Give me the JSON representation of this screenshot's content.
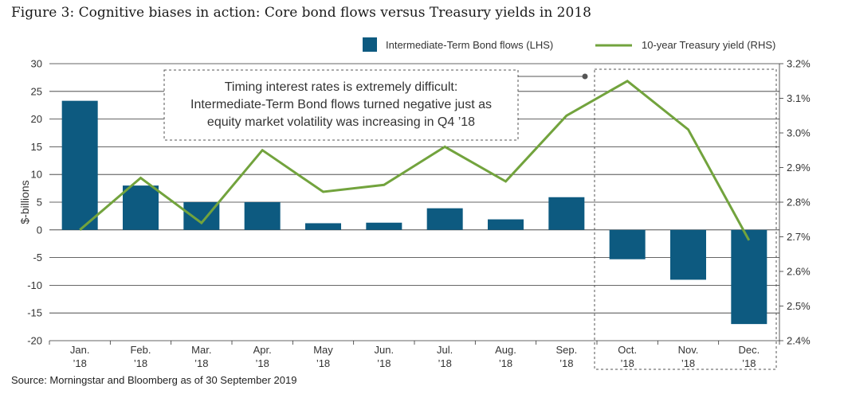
{
  "title": "Figure 3: Cognitive biases in action: Core bond flows versus Treasury yields in 2018",
  "source": "Source: Morningstar and Bloomberg as of 30 September 2019",
  "annotation": {
    "lines": [
      "Timing interest rates is extremely difficult:",
      "Intermediate-Term Bond flows turned negative just as",
      "equity market volatility was increasing in Q4 ’18"
    ]
  },
  "colors": {
    "bar": "#0d5a80",
    "line": "#72a33d",
    "grid": "#333333",
    "text": "#333333"
  },
  "chart_data": {
    "type": "bar",
    "categories": [
      [
        "Jan.",
        "’18"
      ],
      [
        "Feb.",
        "’18"
      ],
      [
        "Mar.",
        "’18"
      ],
      [
        "Apr.",
        "’18"
      ],
      [
        "May",
        "’18"
      ],
      [
        "Jun.",
        "’18"
      ],
      [
        "Jul.",
        "’18"
      ],
      [
        "Aug.",
        "’18"
      ],
      [
        "Sep.",
        "’18"
      ],
      [
        "Oct.",
        "’18"
      ],
      [
        "Nov.",
        "’18"
      ],
      [
        "Dec.",
        "’18"
      ]
    ],
    "series": [
      {
        "name": "Intermediate-Term Bond flows (LHS)",
        "type": "bar",
        "axis": "left",
        "values": [
          23.3,
          8.0,
          5.0,
          5.0,
          1.2,
          1.3,
          3.9,
          1.9,
          5.9,
          -5.3,
          -9.0,
          -17.0
        ]
      },
      {
        "name": "10-year Treasury yield (RHS)",
        "type": "line",
        "axis": "right",
        "values": [
          2.72,
          2.87,
          2.74,
          2.95,
          2.83,
          2.85,
          2.96,
          2.86,
          3.05,
          3.15,
          3.01,
          2.69
        ]
      }
    ],
    "ylabel": "$-billions",
    "ylim": [
      -20,
      30
    ],
    "yticks": [
      30,
      25,
      20,
      15,
      10,
      5,
      0,
      -5,
      -10,
      -15,
      -20
    ],
    "ytick_labels": [
      "30",
      "25",
      "20",
      "15",
      "10",
      "5",
      "0",
      "-5",
      "-10",
      "-15",
      "-20"
    ],
    "y2lim": [
      2.4,
      3.2
    ],
    "y2ticks": [
      3.2,
      3.1,
      3.0,
      2.9,
      2.8,
      2.7,
      2.6,
      2.5,
      2.4
    ],
    "y2tick_labels": [
      "3.2%",
      "3.1%",
      "3.0%",
      "2.9%",
      "2.8%",
      "2.7%",
      "2.6%",
      "2.5%",
      "2.4%"
    ],
    "grid": true,
    "legend_position": "top-right",
    "highlight_categories": [
      "Oct.",
      "Nov.",
      "Dec."
    ]
  }
}
